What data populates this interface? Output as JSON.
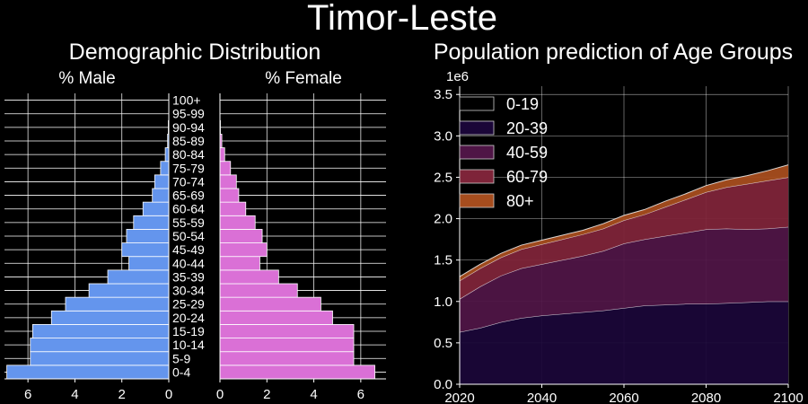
{
  "figure": {
    "title": "Timor-Leste"
  },
  "colors": {
    "background": "#000000",
    "male": "#6495ED",
    "female": "#DA70D6",
    "grid": "#ffffff"
  },
  "chart_data": [
    {
      "type": "bar",
      "orientation": "horizontal",
      "title": "Demographic Distribution",
      "left_title": "% Male",
      "right_title": "% Female",
      "categories": [
        "0-4",
        "5-9",
        "10-14",
        "15-19",
        "20-24",
        "25-29",
        "30-34",
        "35-39",
        "40-44",
        "45-49",
        "50-54",
        "55-59",
        "60-64",
        "65-69",
        "70-74",
        "75-79",
        "80-84",
        "85-89",
        "90-94",
        "95-99",
        "100+"
      ],
      "series": [
        {
          "name": "% Male",
          "values": [
            6.9,
            5.9,
            5.9,
            5.8,
            5.0,
            4.4,
            3.4,
            2.6,
            1.7,
            2.0,
            1.8,
            1.5,
            1.1,
            0.7,
            0.6,
            0.35,
            0.15,
            0.05,
            0.02,
            0.0,
            0.0
          ]
        },
        {
          "name": "% Female",
          "values": [
            6.6,
            5.7,
            5.7,
            5.7,
            4.8,
            4.3,
            3.3,
            2.5,
            1.7,
            2.0,
            1.8,
            1.5,
            1.1,
            0.8,
            0.7,
            0.45,
            0.2,
            0.08,
            0.02,
            0.0,
            0.0
          ]
        }
      ],
      "xlim": [
        0,
        7
      ],
      "xticks": [
        0,
        2,
        4,
        6
      ],
      "grid": true
    },
    {
      "type": "area",
      "stacked": true,
      "title": "Population prediction of Age Groups",
      "y_offset_label": "1e6",
      "x": [
        2020,
        2025,
        2030,
        2035,
        2040,
        2045,
        2050,
        2055,
        2060,
        2065,
        2070,
        2075,
        2080,
        2085,
        2090,
        2095,
        2100
      ],
      "series": [
        {
          "name": "0-19",
          "color": "#000000",
          "values": [
            0,
            0,
            0,
            0,
            0,
            0,
            0,
            0,
            0,
            0,
            0,
            0,
            0,
            0,
            0,
            0,
            0
          ]
        },
        {
          "name": "20-39",
          "color": "#1a0638",
          "values": [
            0.63,
            0.68,
            0.75,
            0.8,
            0.83,
            0.85,
            0.87,
            0.89,
            0.92,
            0.95,
            0.96,
            0.97,
            0.97,
            0.98,
            0.99,
            1.0,
            1.0
          ]
        },
        {
          "name": "40-59",
          "color": "#4f1546",
          "values": [
            0.4,
            0.5,
            0.56,
            0.6,
            0.62,
            0.65,
            0.68,
            0.72,
            0.78,
            0.8,
            0.83,
            0.86,
            0.9,
            0.9,
            0.88,
            0.88,
            0.9
          ]
        },
        {
          "name": "60-79",
          "color": "#7e2439",
          "values": [
            0.22,
            0.22,
            0.22,
            0.23,
            0.24,
            0.25,
            0.26,
            0.27,
            0.28,
            0.3,
            0.35,
            0.4,
            0.45,
            0.5,
            0.55,
            0.58,
            0.6
          ]
        },
        {
          "name": "80+",
          "color": "#a64d1e",
          "values": [
            0.05,
            0.05,
            0.05,
            0.05,
            0.05,
            0.05,
            0.05,
            0.06,
            0.06,
            0.06,
            0.07,
            0.07,
            0.08,
            0.09,
            0.1,
            0.12,
            0.15
          ]
        }
      ],
      "xlim": [
        2020,
        2100
      ],
      "xticks": [
        2020,
        2040,
        2060,
        2080,
        2100
      ],
      "ylim": [
        0,
        3.6
      ],
      "yticks": [
        0.0,
        0.5,
        1.0,
        1.5,
        2.0,
        2.5,
        3.0,
        3.5
      ],
      "legend": "top-left",
      "grid": true
    }
  ]
}
